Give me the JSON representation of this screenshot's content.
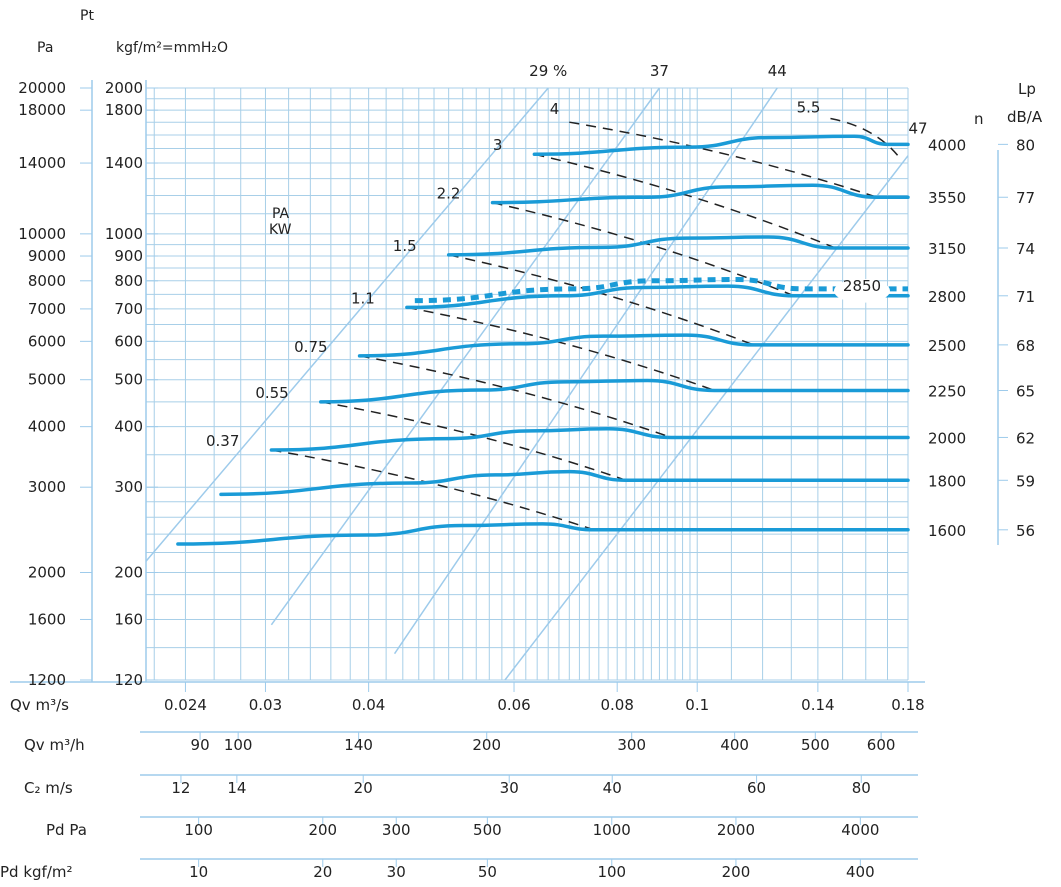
{
  "chart_data": {
    "type": "line",
    "header": {
      "pt": "Pt",
      "pa": "Pa",
      "kgf": "kgf/m²=mmH₂O",
      "n": "n",
      "lp": "Lp",
      "dba": "dB/A",
      "pakw": [
        "PA",
        "KW"
      ]
    },
    "x_axis": {
      "label": "Qv m³/s",
      "scale": "log",
      "range": [
        0.0215,
        0.18
      ],
      "ticks": [
        {
          "v": 0.024,
          "label": "0.024"
        },
        {
          "v": 0.03,
          "label": "0.03"
        },
        {
          "v": 0.04,
          "label": "0.04"
        },
        {
          "v": 0.06,
          "label": "0.06"
        },
        {
          "v": 0.08,
          "label": "0.08"
        },
        {
          "v": 0.1,
          "label": "0.1"
        },
        {
          "v": 0.14,
          "label": "0.14"
        },
        {
          "v": 0.18,
          "label": "0.18"
        }
      ]
    },
    "y_axis_pa": {
      "label": "Pa",
      "scale": "log",
      "range": [
        1200,
        20000
      ],
      "ticks": [
        1200,
        1600,
        2000,
        3000,
        4000,
        5000,
        6000,
        7000,
        8000,
        9000,
        10000,
        14000,
        18000,
        20000
      ]
    },
    "y_axis_mmh2o": {
      "label": "kgf/m²=mmH₂O",
      "ticks": [
        120,
        160,
        200,
        300,
        400,
        500,
        600,
        700,
        800,
        900,
        1000,
        1400,
        1800,
        2000
      ]
    },
    "speed_curves": [
      {
        "n": "1600",
        "lp": "56",
        "points": [
          [
            0.0235,
            2290
          ],
          [
            0.04,
            2390
          ],
          [
            0.052,
            2500
          ],
          [
            0.065,
            2520
          ],
          [
            0.075,
            2450
          ],
          [
            0.18,
            2450
          ]
        ]
      },
      {
        "n": "1800",
        "lp": "59",
        "points": [
          [
            0.0265,
            2900
          ],
          [
            0.045,
            3060
          ],
          [
            0.057,
            3180
          ],
          [
            0.07,
            3230
          ],
          [
            0.082,
            3100
          ],
          [
            0.18,
            3100
          ]
        ]
      },
      {
        "n": "2000",
        "lp": "62",
        "points": [
          [
            0.0305,
            3580
          ],
          [
            0.05,
            3780
          ],
          [
            0.063,
            3920
          ],
          [
            0.078,
            3960
          ],
          [
            0.093,
            3800
          ],
          [
            0.18,
            3800
          ]
        ]
      },
      {
        "n": "2250",
        "lp": "65",
        "points": [
          [
            0.035,
            4500
          ],
          [
            0.055,
            4760
          ],
          [
            0.069,
            4950
          ],
          [
            0.087,
            4980
          ],
          [
            0.105,
            4750
          ],
          [
            0.18,
            4750
          ]
        ]
      },
      {
        "n": "2500",
        "lp": "68",
        "points": [
          [
            0.039,
            5600
          ],
          [
            0.061,
            5930
          ],
          [
            0.077,
            6150
          ],
          [
            0.097,
            6180
          ],
          [
            0.117,
            5900
          ],
          [
            0.18,
            5900
          ]
        ]
      },
      {
        "n": "2800",
        "lp": "71",
        "points": [
          [
            0.0445,
            7050
          ],
          [
            0.069,
            7450
          ],
          [
            0.086,
            7750
          ],
          [
            0.109,
            7800
          ],
          [
            0.131,
            7450
          ],
          [
            0.18,
            7450
          ]
        ]
      },
      {
        "n": "3150",
        "lp": "74",
        "points": [
          [
            0.05,
            9050
          ],
          [
            0.077,
            9380
          ],
          [
            0.097,
            9800
          ],
          [
            0.122,
            9850
          ],
          [
            0.147,
            9350
          ],
          [
            0.18,
            9350
          ]
        ]
      },
      {
        "n": "3550",
        "lp": "77",
        "points": [
          [
            0.0565,
            11600
          ],
          [
            0.087,
            11900
          ],
          [
            0.109,
            12500
          ],
          [
            0.138,
            12600
          ],
          [
            0.165,
            11900
          ],
          [
            0.18,
            11900
          ]
        ]
      },
      {
        "n": "4000",
        "lp": "80",
        "points": [
          [
            0.0635,
            14600
          ],
          [
            0.098,
            15100
          ],
          [
            0.122,
            15800
          ],
          [
            0.155,
            15900
          ],
          [
            0.17,
            15300
          ],
          [
            0.18,
            15300
          ]
        ]
      }
    ],
    "curve_2850": {
      "label": "2850",
      "points": [
        [
          0.0455,
          7280
        ],
        [
          0.071,
          7700
        ],
        [
          0.088,
          8000
        ],
        [
          0.112,
          8050
        ],
        [
          0.134,
          7700
        ],
        [
          0.18,
          7700
        ]
      ]
    },
    "efficiency_lines": [
      {
        "label": "29 %",
        "points": [
          [
            0.0215,
            2110
          ],
          [
            0.066,
            20000
          ]
        ]
      },
      {
        "label": "37",
        "points": [
          [
            0.0305,
            1560
          ],
          [
            0.09,
            20000
          ]
        ]
      },
      {
        "label": "44",
        "points": [
          [
            0.043,
            1360
          ],
          [
            0.125,
            20000
          ]
        ]
      },
      {
        "label": "47",
        "points": [
          [
            0.0585,
            1200
          ],
          [
            0.18,
            14500
          ]
        ]
      }
    ],
    "power_lines": [
      {
        "label": "0.37",
        "points": [
          [
            0.0305,
            3580
          ],
          [
            0.075,
            2450
          ]
        ]
      },
      {
        "label": "0.55",
        "points": [
          [
            0.035,
            4500
          ],
          [
            0.082,
            3100
          ]
        ]
      },
      {
        "label": "0.75",
        "points": [
          [
            0.039,
            5600
          ],
          [
            0.093,
            3800
          ]
        ]
      },
      {
        "label": "1.1",
        "points": [
          [
            0.0445,
            7050
          ],
          [
            0.105,
            4750
          ]
        ]
      },
      {
        "label": "1.5",
        "points": [
          [
            0.05,
            9050
          ],
          [
            0.117,
            5900
          ]
        ]
      },
      {
        "label": "2.2",
        "points": [
          [
            0.0565,
            11600
          ],
          [
            0.131,
            7450
          ]
        ]
      },
      {
        "label": "3",
        "points": [
          [
            0.0635,
            14600
          ],
          [
            0.147,
            9350
          ]
        ]
      },
      {
        "label": "4",
        "points": [
          [
            0.07,
            17000
          ],
          [
            0.165,
            11900
          ]
        ]
      },
      {
        "label": "5.5",
        "points": [
          [
            0.145,
            17300
          ],
          [
            0.175,
            14500
          ]
        ]
      }
    ],
    "scales": [
      {
        "label": "Qv m³/h",
        "ticks": [
          {
            "v": 0.025,
            "label": "90"
          },
          {
            "v": 0.0278,
            "label": "100"
          },
          {
            "v": 0.0389,
            "label": "140"
          },
          {
            "v": 0.0556,
            "label": "200"
          },
          {
            "v": 0.0833,
            "label": "300"
          },
          {
            "v": 0.111,
            "label": "400"
          },
          {
            "v": 0.139,
            "label": "500"
          },
          {
            "v": 0.167,
            "label": "600"
          }
        ]
      },
      {
        "label": "C₂ m/s",
        "ticks": [
          {
            "v": 0.0237,
            "label": "12"
          },
          {
            "v": 0.0277,
            "label": "14"
          },
          {
            "v": 0.0394,
            "label": "20"
          },
          {
            "v": 0.0592,
            "label": "30"
          },
          {
            "v": 0.0789,
            "label": "40"
          },
          {
            "v": 0.118,
            "label": "60"
          },
          {
            "v": 0.158,
            "label": "80"
          }
        ]
      },
      {
        "label": "Pd Pa",
        "ticks": [
          {
            "v": 0.0249,
            "label": "100"
          },
          {
            "v": 0.0352,
            "label": "200"
          },
          {
            "v": 0.0432,
            "label": "300"
          },
          {
            "v": 0.0557,
            "label": "500"
          },
          {
            "v": 0.0788,
            "label": "1000"
          },
          {
            "v": 0.1114,
            "label": "2000"
          },
          {
            "v": 0.1576,
            "label": "4000"
          }
        ]
      },
      {
        "label": "Pd kgf/m²",
        "ticks": [
          {
            "v": 0.0249,
            "label": "10"
          },
          {
            "v": 0.0352,
            "label": "20"
          },
          {
            "v": 0.0432,
            "label": "30"
          },
          {
            "v": 0.0557,
            "label": "50"
          },
          {
            "v": 0.0788,
            "label": "100"
          },
          {
            "v": 0.1114,
            "label": "200"
          },
          {
            "v": 0.1576,
            "label": "400"
          }
        ]
      }
    ],
    "colors": {
      "curve": "#1a9bd7",
      "grid": "#a8cfe8",
      "efficiency": "#9ecbeb",
      "dash": "#222222",
      "axis": "#9ecbeb"
    }
  }
}
